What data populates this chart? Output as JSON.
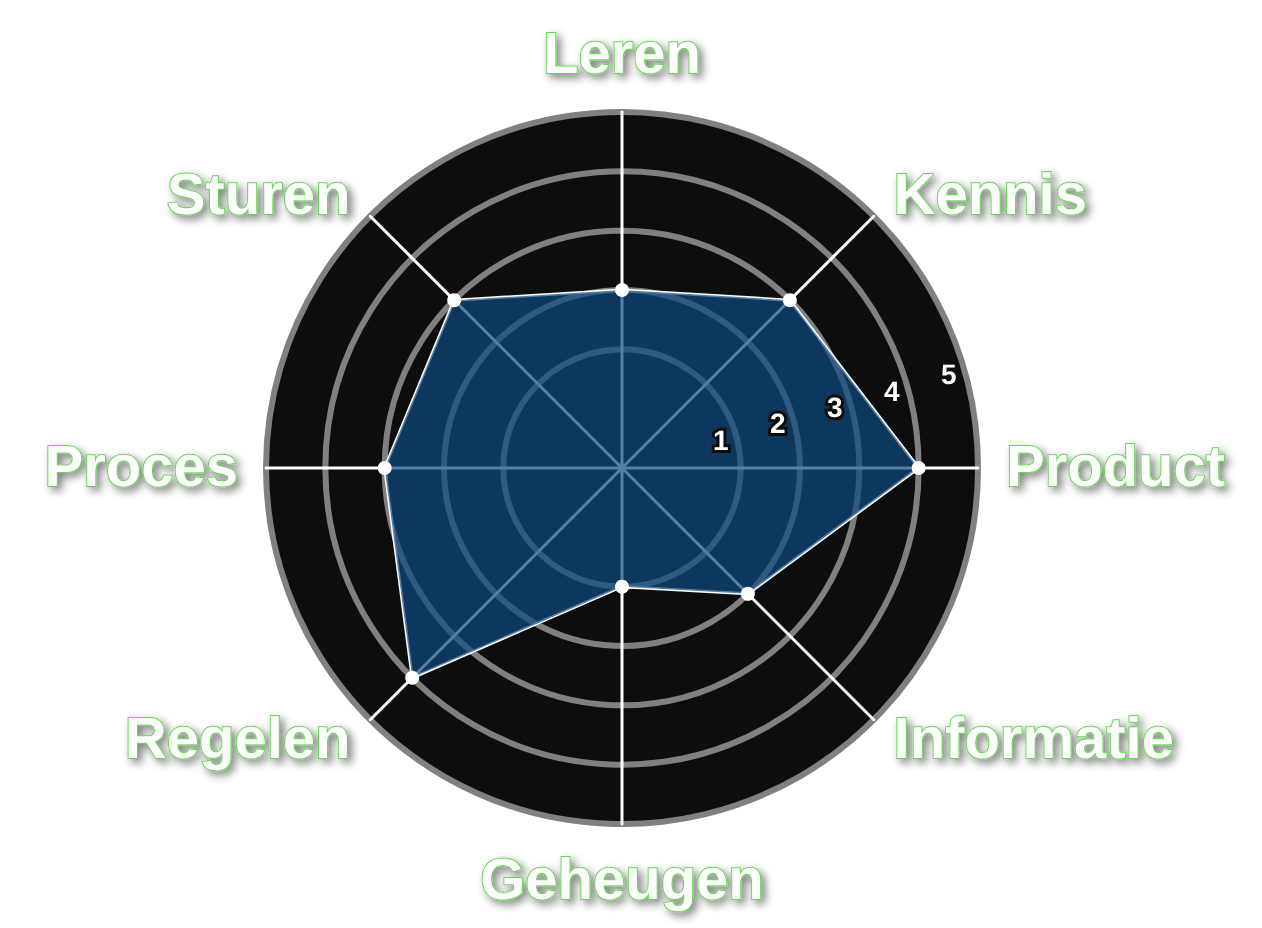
{
  "chart_data": {
    "type": "radar",
    "categories": [
      "Leren",
      "Kennis",
      "Product",
      "Informatie",
      "Geheugen",
      "Regelen",
      "Proces",
      "Sturen"
    ],
    "series": [
      {
        "color": "#0e4a80",
        "values": [
          2,
          3,
          4,
          2,
          1,
          4,
          3,
          3
        ]
      }
    ],
    "ylim": [
      -1,
      5
    ],
    "yticks": [
      1,
      2,
      3,
      4,
      5
    ],
    "grid": true,
    "marker": "circle"
  }
}
